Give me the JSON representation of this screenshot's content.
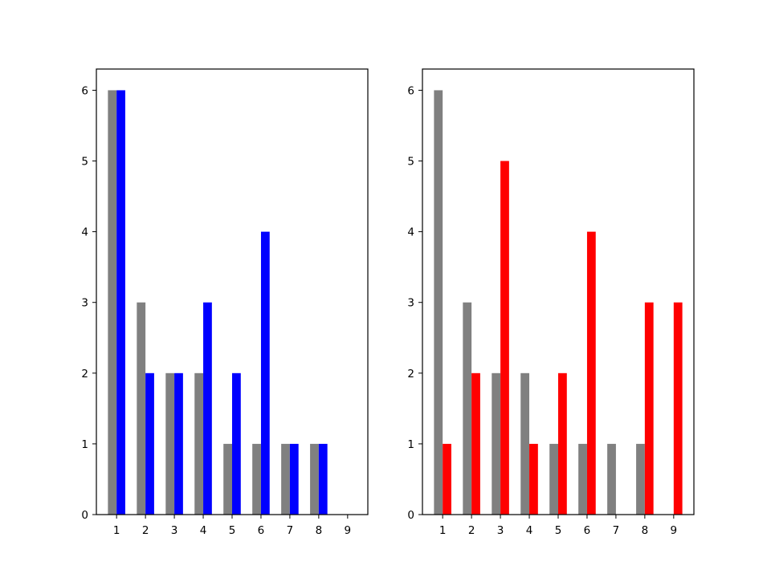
{
  "chart_data": [
    {
      "type": "bar",
      "categories": [
        "1",
        "2",
        "3",
        "4",
        "5",
        "6",
        "7",
        "8",
        "9"
      ],
      "series": [
        {
          "color": "#808080",
          "values": [
            6,
            3,
            2,
            2,
            1,
            1,
            1,
            1,
            0
          ]
        },
        {
          "color": "#0000ff",
          "values": [
            6,
            2,
            2,
            3,
            2,
            4,
            1,
            1,
            0
          ]
        }
      ],
      "ylim": [
        0,
        6.3
      ],
      "yticks": [
        "0",
        "1",
        "2",
        "3",
        "4",
        "5",
        "6"
      ],
      "xlim": [
        0.3,
        9.7
      ],
      "grid": false,
      "title": "",
      "xlabel": "",
      "ylabel": ""
    },
    {
      "type": "bar",
      "categories": [
        "1",
        "2",
        "3",
        "4",
        "5",
        "6",
        "7",
        "8",
        "9"
      ],
      "series": [
        {
          "color": "#808080",
          "values": [
            6,
            3,
            2,
            2,
            1,
            1,
            1,
            1,
            0
          ]
        },
        {
          "color": "#ff0000",
          "values": [
            1,
            2,
            5,
            1,
            2,
            4,
            0,
            3,
            3
          ]
        }
      ],
      "ylim": [
        0,
        6.3
      ],
      "yticks": [
        "0",
        "1",
        "2",
        "3",
        "4",
        "5",
        "6"
      ],
      "xlim": [
        0.3,
        9.7
      ],
      "grid": false,
      "title": "",
      "xlabel": "",
      "ylabel": ""
    }
  ]
}
